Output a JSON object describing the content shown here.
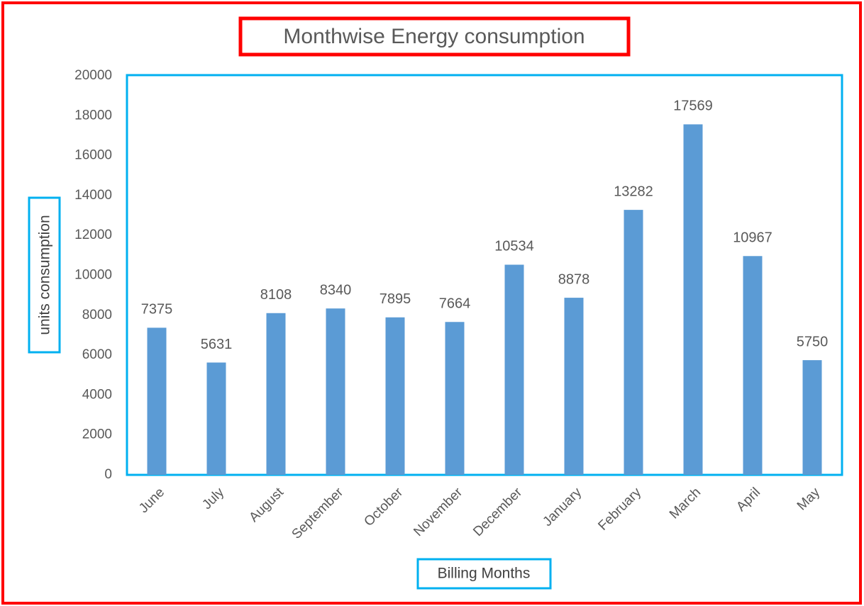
{
  "chart_data": {
    "type": "bar",
    "title": "Monthwise Energy consumption",
    "x_label": "Billing Months",
    "y_label": "units consumption",
    "categories": [
      "June",
      "July",
      "August",
      "September",
      "October",
      "November",
      "December",
      "January",
      "February",
      "March",
      "April",
      "May"
    ],
    "values": [
      7375,
      5631,
      8108,
      8340,
      7895,
      7664,
      10534,
      8878,
      13282,
      17569,
      10967,
      5750
    ],
    "color": "#5b9bd5",
    "ylim": [
      0,
      20000
    ],
    "yticks": [
      0,
      2000,
      4000,
      6000,
      8000,
      10000,
      12000,
      14000,
      16000,
      18000,
      20000
    ],
    "grid": false
  }
}
